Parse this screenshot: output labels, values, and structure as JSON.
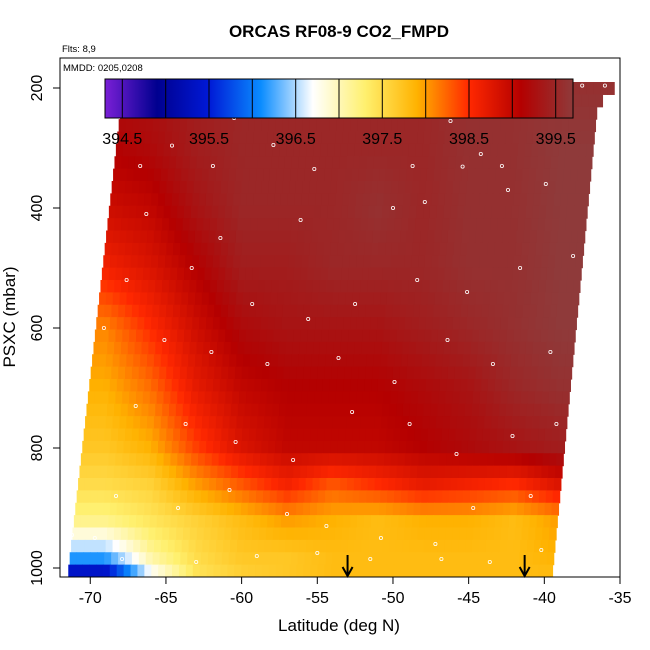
{
  "chart_data": {
    "type": "heatmap",
    "title": "ORCAS RF08-9 CO2_FMPD",
    "flights_label": "Flts: 8,9",
    "dates_label": "MMDD: 0205,0208",
    "xlabel": "Latitude (deg N)",
    "ylabel": "PSXC (mbar)",
    "xlim": [
      -72,
      -35
    ],
    "ylim": [
      1015,
      150
    ],
    "y_reversed": true,
    "x_ticks": [
      -70,
      -65,
      -60,
      -55,
      -50,
      -45,
      -40,
      -35
    ],
    "y_ticks": [
      200,
      400,
      600,
      800,
      1000
    ],
    "colorbar": {
      "range": [
        394.3,
        399.7
      ],
      "ticks": [
        394.5,
        395.5,
        396.5,
        397.5,
        398.5,
        399.5
      ],
      "tick_labels": [
        "394.5",
        "395.5",
        "396.5",
        "397.5",
        "398.5",
        "399.5"
      ],
      "colors": [
        "#7a1fd6",
        "#00008f",
        "#0019d6",
        "#0a8cff",
        "#ffffff",
        "#fff06e",
        "#ffb200",
        "#ff2800",
        "#b40000",
        "#8f3a3a"
      ]
    },
    "lat_levels": [
      -72,
      -69,
      -66,
      -63,
      -60,
      -57,
      -54,
      -51,
      -48,
      -45,
      -42,
      -39,
      -36
    ],
    "pressure_levels": [
      190,
      300,
      400,
      500,
      600,
      700,
      800,
      860,
      920,
      980,
      1015
    ],
    "co2_grid": [
      [
        399.3,
        399.3,
        399.3,
        399.4,
        399.5,
        399.5,
        399.5,
        399.5,
        399.5,
        399.6,
        399.6,
        399.6,
        399.6
      ],
      [
        399.1,
        399.1,
        399.2,
        399.4,
        399.5,
        399.5,
        399.5,
        399.5,
        399.5,
        399.6,
        399.6,
        399.7,
        399.7
      ],
      [
        398.9,
        398.9,
        399.0,
        399.3,
        399.5,
        399.5,
        399.5,
        399.6,
        399.5,
        399.6,
        399.6,
        399.7,
        399.7
      ],
      [
        398.6,
        398.6,
        398.8,
        399.1,
        399.4,
        399.4,
        399.5,
        399.5,
        399.5,
        399.6,
        399.6,
        399.7,
        399.7
      ],
      [
        398.1,
        398.1,
        398.5,
        398.9,
        399.2,
        399.3,
        399.3,
        399.3,
        399.4,
        399.5,
        399.6,
        399.7,
        399.7
      ],
      [
        397.9,
        397.9,
        398.2,
        398.7,
        399.0,
        399.1,
        399.1,
        399.1,
        399.2,
        399.3,
        399.5,
        399.6,
        399.6
      ],
      [
        397.7,
        397.7,
        397.9,
        398.4,
        398.8,
        399.0,
        399.0,
        399.0,
        399.1,
        399.2,
        399.3,
        399.4,
        399.4
      ],
      [
        397.5,
        397.5,
        397.6,
        398.0,
        398.3,
        398.6,
        398.3,
        398.5,
        398.7,
        398.6,
        398.5,
        398.8,
        398.8
      ],
      [
        397.2,
        397.2,
        397.4,
        397.6,
        397.8,
        398.0,
        397.9,
        397.8,
        397.9,
        397.9,
        397.8,
        398.0,
        398.0
      ],
      [
        396.3,
        396.3,
        397.1,
        397.5,
        397.7,
        397.7,
        397.8,
        397.8,
        397.8,
        397.8,
        397.8,
        397.9,
        397.9
      ],
      [
        395.0,
        395.0,
        396.6,
        397.4,
        397.6,
        397.7,
        397.8,
        397.8,
        397.8,
        397.8,
        397.8,
        397.8,
        397.8
      ]
    ],
    "data_left_edge": [
      {
        "p": 190,
        "lat": -67.8
      },
      {
        "p": 1015,
        "lat": -71.5
      }
    ],
    "data_right_edge": [
      {
        "p": 190,
        "lat": -35.0
      },
      {
        "p": 230,
        "lat": -36.5
      },
      {
        "p": 1015,
        "lat": -39.5
      }
    ],
    "arrows_lat": [
      -53.0,
      -41.3
    ],
    "flight_track": [
      {
        "lat": -67.4,
        "p": 196
      },
      {
        "lat": -62.5,
        "p": 196
      },
      {
        "lat": -57.5,
        "p": 196
      },
      {
        "lat": -52.5,
        "p": 196
      },
      {
        "lat": -50.5,
        "p": 196
      },
      {
        "lat": -47.5,
        "p": 196
      },
      {
        "lat": -43.0,
        "p": 196
      },
      {
        "lat": -37.5,
        "p": 196
      },
      {
        "lat": -36.0,
        "p": 196
      },
      {
        "lat": -70.0,
        "p": 380
      },
      {
        "lat": -69.3,
        "p": 385
      },
      {
        "lat": -66.7,
        "p": 330
      },
      {
        "lat": -61.9,
        "p": 330
      },
      {
        "lat": -55.2,
        "p": 335
      },
      {
        "lat": -48.7,
        "p": 330
      },
      {
        "lat": -45.4,
        "p": 331
      },
      {
        "lat": -42.8,
        "p": 330
      },
      {
        "lat": -64.6,
        "p": 296
      },
      {
        "lat": -60.5,
        "p": 250
      },
      {
        "lat": -57.9,
        "p": 295
      },
      {
        "lat": -53.2,
        "p": 245
      },
      {
        "lat": -51.1,
        "p": 235
      },
      {
        "lat": -46.2,
        "p": 255
      },
      {
        "lat": -44.2,
        "p": 310
      },
      {
        "lat": -40.6,
        "p": 240
      },
      {
        "lat": -38.6,
        "p": 210
      },
      {
        "lat": -66.3,
        "p": 410
      },
      {
        "lat": -61.4,
        "p": 450
      },
      {
        "lat": -56.1,
        "p": 420
      },
      {
        "lat": -50.0,
        "p": 400
      },
      {
        "lat": -47.9,
        "p": 390
      },
      {
        "lat": -42.4,
        "p": 370
      },
      {
        "lat": -39.9,
        "p": 360
      },
      {
        "lat": -70.5,
        "p": 470
      },
      {
        "lat": -67.6,
        "p": 520
      },
      {
        "lat": -63.3,
        "p": 500
      },
      {
        "lat": -59.3,
        "p": 560
      },
      {
        "lat": -55.6,
        "p": 585
      },
      {
        "lat": -52.5,
        "p": 560
      },
      {
        "lat": -48.4,
        "p": 520
      },
      {
        "lat": -45.1,
        "p": 540
      },
      {
        "lat": -41.6,
        "p": 500
      },
      {
        "lat": -38.1,
        "p": 480
      },
      {
        "lat": -69.1,
        "p": 600
      },
      {
        "lat": -65.1,
        "p": 620
      },
      {
        "lat": -62.0,
        "p": 640
      },
      {
        "lat": -58.3,
        "p": 660
      },
      {
        "lat": -53.6,
        "p": 650
      },
      {
        "lat": -49.9,
        "p": 690
      },
      {
        "lat": -46.4,
        "p": 620
      },
      {
        "lat": -43.4,
        "p": 660
      },
      {
        "lat": -39.6,
        "p": 640
      },
      {
        "lat": -70.9,
        "p": 700
      },
      {
        "lat": -67.0,
        "p": 730
      },
      {
        "lat": -63.7,
        "p": 760
      },
      {
        "lat": -60.4,
        "p": 790
      },
      {
        "lat": -56.6,
        "p": 820
      },
      {
        "lat": -52.7,
        "p": 740
      },
      {
        "lat": -48.9,
        "p": 760
      },
      {
        "lat": -45.8,
        "p": 810
      },
      {
        "lat": -42.1,
        "p": 780
      },
      {
        "lat": -39.2,
        "p": 760
      },
      {
        "lat": -71.0,
        "p": 830
      },
      {
        "lat": -68.3,
        "p": 880
      },
      {
        "lat": -64.2,
        "p": 900
      },
      {
        "lat": -60.8,
        "p": 870
      },
      {
        "lat": -57.0,
        "p": 910
      },
      {
        "lat": -54.4,
        "p": 930
      },
      {
        "lat": -50.8,
        "p": 950
      },
      {
        "lat": -47.2,
        "p": 960
      },
      {
        "lat": -44.7,
        "p": 900
      },
      {
        "lat": -40.9,
        "p": 880
      },
      {
        "lat": -71.2,
        "p": 945
      },
      {
        "lat": -69.7,
        "p": 950
      },
      {
        "lat": -67.9,
        "p": 985
      },
      {
        "lat": -63.0,
        "p": 990
      },
      {
        "lat": -59.0,
        "p": 980
      },
      {
        "lat": -55.0,
        "p": 975
      },
      {
        "lat": -51.5,
        "p": 985
      },
      {
        "lat": -46.8,
        "p": 985
      },
      {
        "lat": -43.6,
        "p": 990
      },
      {
        "lat": -40.2,
        "p": 970
      }
    ]
  }
}
